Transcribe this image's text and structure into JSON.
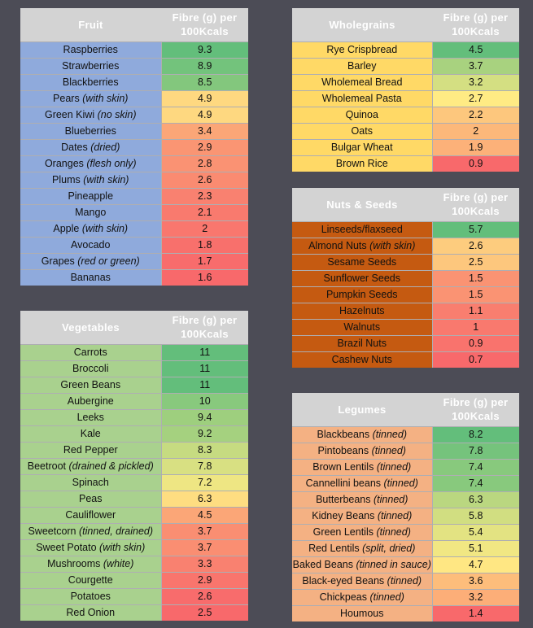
{
  "tables": [
    {
      "id": "fruit",
      "title": "Fruit",
      "header": "Fibre (g) per 100Kcals",
      "name_bg": "#8faadc",
      "rows": [
        {
          "name": "Raspberries",
          "note": "",
          "value": "9.3"
        },
        {
          "name": "Strawberries",
          "note": "",
          "value": "8.9"
        },
        {
          "name": "Blackberries",
          "note": "",
          "value": "8.5"
        },
        {
          "name": "Pears",
          "note": "(with skin)",
          "value": "4.9"
        },
        {
          "name": "Green Kiwi",
          "note": "(no skin)",
          "value": "4.9"
        },
        {
          "name": "Blueberries",
          "note": "",
          "value": "3.4"
        },
        {
          "name": "Dates",
          "note": "(dried)",
          "value": "2.9"
        },
        {
          "name": "Oranges",
          "note": "(flesh only)",
          "value": "2.8"
        },
        {
          "name": "Plums",
          "note": "(with skin)",
          "value": "2.6"
        },
        {
          "name": "Pineapple",
          "note": "",
          "value": "2.3"
        },
        {
          "name": "Mango",
          "note": "",
          "value": "2.1"
        },
        {
          "name": "Apple",
          "note": "(with skin)",
          "value": "2"
        },
        {
          "name": "Avocado",
          "note": "",
          "value": "1.8"
        },
        {
          "name": "Grapes",
          "note": "(red or green)",
          "value": "1.7"
        },
        {
          "name": "Bananas",
          "note": "",
          "value": "1.6"
        }
      ]
    },
    {
      "id": "vegetables",
      "title": "Vegetables",
      "header": "Fibre (g) per 100Kcals",
      "name_bg": "#a9d18e",
      "rows": [
        {
          "name": "Carrots",
          "note": "",
          "value": "11"
        },
        {
          "name": "Broccoli",
          "note": "",
          "value": "11"
        },
        {
          "name": "Green Beans",
          "note": "",
          "value": "11"
        },
        {
          "name": "Aubergine",
          "note": "",
          "value": "10"
        },
        {
          "name": "Leeks",
          "note": "",
          "value": "9.4"
        },
        {
          "name": "Kale",
          "note": "",
          "value": "9.2"
        },
        {
          "name": "Red Pepper",
          "note": "",
          "value": "8.3"
        },
        {
          "name": "Beetroot",
          "note": "(drained & pickled)",
          "value": "7.8"
        },
        {
          "name": "Spinach",
          "note": "",
          "value": "7.2"
        },
        {
          "name": "Peas",
          "note": "",
          "value": "6.3"
        },
        {
          "name": "Cauliflower",
          "note": "",
          "value": "4.5"
        },
        {
          "name": "Sweetcorn",
          "note": "(tinned, drained)",
          "value": "3.7"
        },
        {
          "name": "Sweet Potato",
          "note": "(with skin)",
          "value": "3.7"
        },
        {
          "name": "Mushrooms",
          "note": "(white)",
          "value": "3.3"
        },
        {
          "name": "Courgette",
          "note": "",
          "value": "2.9"
        },
        {
          "name": "Potatoes",
          "note": "",
          "value": "2.6"
        },
        {
          "name": "Red Onion",
          "note": "",
          "value": "2.5"
        }
      ]
    },
    {
      "id": "wholegrains",
      "title": "Wholegrains",
      "header": "Fibre (g) per 100Kcals",
      "name_bg": "#ffd966",
      "rows": [
        {
          "name": "Rye Crispbread",
          "note": "",
          "value": "4.5"
        },
        {
          "name": "Barley",
          "note": "",
          "value": "3.7"
        },
        {
          "name": "Wholemeal Bread",
          "note": "",
          "value": "3.2"
        },
        {
          "name": "Wholemeal Pasta",
          "note": "",
          "value": "2.7"
        },
        {
          "name": "Quinoa",
          "note": "",
          "value": "2.2"
        },
        {
          "name": "Oats",
          "note": "",
          "value": "2"
        },
        {
          "name": "Bulgar Wheat",
          "note": "",
          "value": "1.9"
        },
        {
          "name": "Brown Rice",
          "note": "",
          "value": "0.9"
        }
      ]
    },
    {
      "id": "nuts-seeds",
      "title": "Nuts & Seeds",
      "header": "Fibre (g) per 100Kcals",
      "name_bg": "#c55a11",
      "rows": [
        {
          "name": "Linseeds/flaxseed",
          "note": "",
          "value": "5.7"
        },
        {
          "name": "Almond Nuts",
          "note": "(with skin)",
          "value": "2.6"
        },
        {
          "name": "Sesame Seeds",
          "note": "",
          "value": "2.5"
        },
        {
          "name": "Sunflower Seeds",
          "note": "",
          "value": "1.5"
        },
        {
          "name": "Pumpkin Seeds",
          "note": "",
          "value": "1.5"
        },
        {
          "name": "Hazelnuts",
          "note": "",
          "value": "1.1"
        },
        {
          "name": "Walnuts",
          "note": "",
          "value": "1"
        },
        {
          "name": "Brazil Nuts",
          "note": "",
          "value": "0.9"
        },
        {
          "name": "Cashew Nuts",
          "note": "",
          "value": "0.7"
        }
      ]
    },
    {
      "id": "legumes",
      "title": "Legumes",
      "header": "Fibre (g) per 100Kcals",
      "name_bg": "#f4b183",
      "rows": [
        {
          "name": "Blackbeans",
          "note": "(tinned)",
          "value": "8.2"
        },
        {
          "name": "Pintobeans",
          "note": "(tinned)",
          "value": "7.8"
        },
        {
          "name": "Brown Lentils",
          "note": "(tinned)",
          "value": "7.4"
        },
        {
          "name": "Cannellini beans",
          "note": "(tinned)",
          "value": "7.4"
        },
        {
          "name": "Butterbeans",
          "note": "(tinned)",
          "value": "6.3"
        },
        {
          "name": "Kidney Beans",
          "note": "(tinned)",
          "value": "5.8"
        },
        {
          "name": "Green Lentils",
          "note": "(tinned)",
          "value": "5.4"
        },
        {
          "name": "Red Lentils",
          "note": "(split, dried)",
          "value": "5.1"
        },
        {
          "name": "Baked Beans",
          "note": "(tinned in sauce)",
          "value": "4.7"
        },
        {
          "name": "Black-eyed Beans",
          "note": "(tinned)",
          "value": "3.6"
        },
        {
          "name": "Chickpeas",
          "note": "(tinned)",
          "value": "3.2"
        },
        {
          "name": "Houmous",
          "note": "",
          "value": "1.4"
        }
      ]
    }
  ],
  "scale_colors": {
    "high": "#63be7b",
    "mid": "#ffeb84",
    "low": "#f8696b"
  }
}
